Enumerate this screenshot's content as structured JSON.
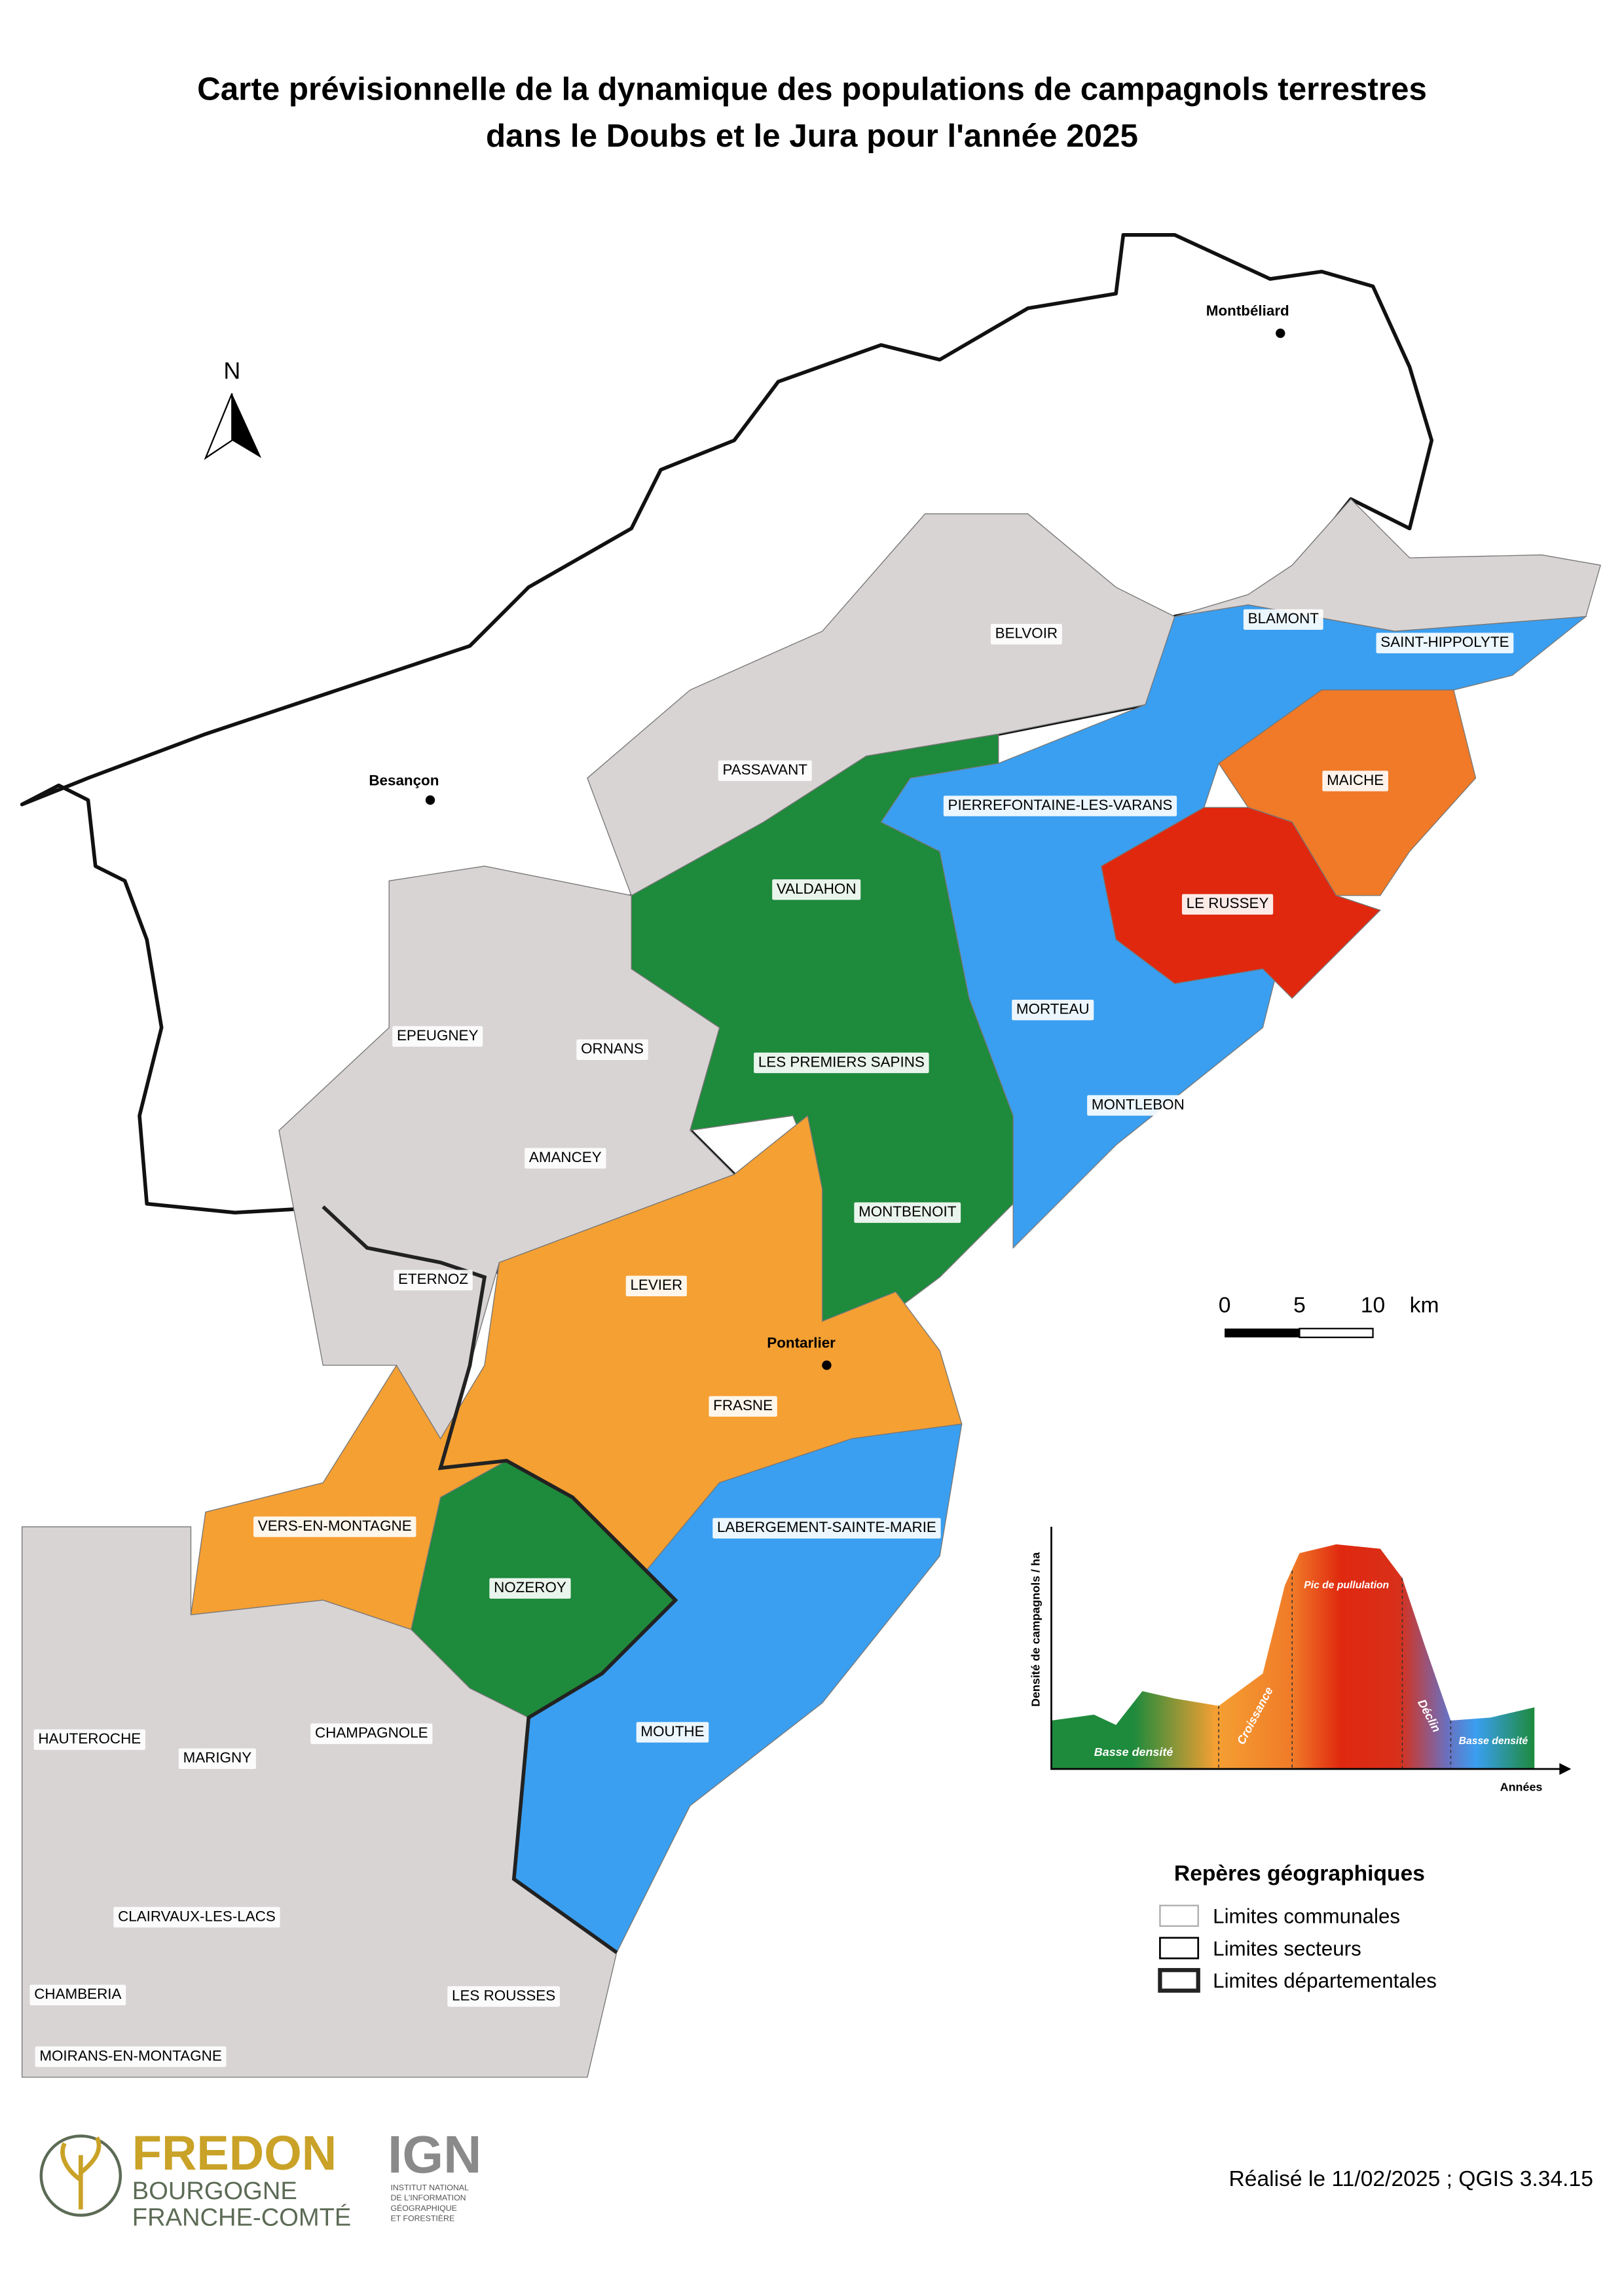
{
  "header": {
    "title_lines": [
      "Carte prévisionnelle de la dynamique des populations de campagnols terrestres",
      "dans le Doubs et le Jura pour l'année 2025"
    ]
  },
  "map": {
    "north": "N",
    "cities": [
      "Montbéliard",
      "Besançon",
      "Pontarlier"
    ],
    "sector_labels": [
      "BELVOIR",
      "BLAMONT",
      "SAINT-HIPPOLYTE",
      "PASSAVANT",
      "MAICHE",
      "PIERREFONTAINE-LES-VARANS",
      "VALDAHON",
      "LE RUSSEY",
      "EPEUGNEY",
      "ORNANS",
      "MORTEAU",
      "LES PREMIERS SAPINS",
      "MONTLEBON",
      "AMANCEY",
      "MONTBENOIT",
      "ETERNOZ",
      "LEVIER",
      "FRASNE",
      "VERS-EN-MONTAGNE",
      "LABERGEMENT-SAINTE-MARIE",
      "NOZEROY",
      "MOUTHE",
      "HAUTEROCHE",
      "CHAMPAGNOLE",
      "MARIGNY",
      "CLAIRVAUX-LES-LACS",
      "CHAMBERIA",
      "LES ROUSSES",
      "MOIRANS-EN-MONTAGNE"
    ],
    "scale_bar": {
      "labels": [
        "0",
        "5",
        "10"
      ],
      "unit": "km"
    }
  },
  "cycle_chart": {
    "y_label": "Densité de campagnols / ha",
    "x_label": "Années",
    "phases": [
      "Basse densité",
      "Croissance",
      "Pic de pullulation",
      "Déclin",
      "Basse densité"
    ]
  },
  "legend": {
    "title": "Repères géographiques",
    "items": [
      "Limites communales",
      "Limites secteurs",
      "Limites départementales"
    ]
  },
  "footer": {
    "fredon": [
      "FREDON",
      "BOURGOGNE",
      "FRANCHE-COMTÉ"
    ],
    "ign": [
      "IGN",
      "INSTITUT NATIONAL",
      "DE L'INFORMATION",
      "GÉOGRAPHIQUE",
      "ET FORESTIÈRE"
    ],
    "credit": "Réalisé le 11/02/2025 ; QGIS 3.34.15"
  }
}
